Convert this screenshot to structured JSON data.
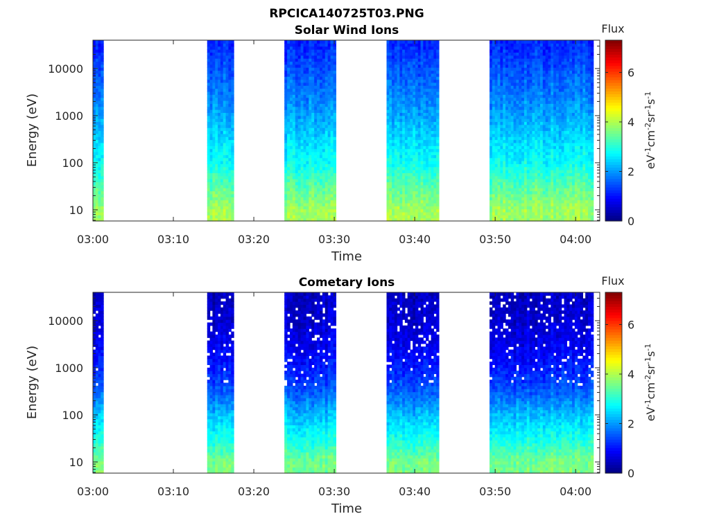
{
  "figure": {
    "title": "RPCICA140725T03.PNG",
    "colorbar_title": "Flux",
    "colorbar_label_parts": [
      "eV",
      "-1",
      "cm",
      "-2",
      "sr",
      "-1",
      "s",
      "-1"
    ]
  },
  "chart_data": [
    {
      "type": "heatmap",
      "title": "Solar Wind Ions",
      "xlabel": "Time",
      "ylabel": "Energy (eV)",
      "x_ticks": [
        "03:00",
        "03:10",
        "03:20",
        "03:30",
        "03:40",
        "03:50",
        "04:00"
      ],
      "x_tick_minutes": [
        0,
        10,
        20,
        30,
        40,
        50,
        60
      ],
      "xlim_minutes": [
        0,
        63
      ],
      "y_ticks": [
        "10",
        "100",
        "1000",
        "10000"
      ],
      "y_tick_values": [
        10,
        100,
        1000,
        10000
      ],
      "yscale": "log",
      "ylim": [
        5.8,
        40000
      ],
      "colorbar": {
        "label": "Flux",
        "ticks": [
          "0",
          "2",
          "4",
          "6"
        ],
        "tick_values": [
          0,
          2,
          4,
          6
        ],
        "clim": [
          0,
          7.3
        ],
        "colormap": "jet"
      },
      "data_intervals_minutes": [
        [
          0,
          1.3
        ],
        [
          14.2,
          17.5
        ],
        [
          23.8,
          30.2
        ],
        [
          36.5,
          43
        ],
        [
          49.3,
          62.2
        ]
      ],
      "flux_profile_by_energy": [
        {
          "energy_eV": 10,
          "flux": 3.9
        },
        {
          "energy_eV": 30,
          "flux": 3.4
        },
        {
          "energy_eV": 100,
          "flux": 2.8
        },
        {
          "energy_eV": 300,
          "flux": 2.5
        },
        {
          "energy_eV": 1000,
          "flux": 2.1
        },
        {
          "energy_eV": 3000,
          "flux": 1.8
        },
        {
          "energy_eV": 10000,
          "flux": 1.5
        },
        {
          "energy_eV": 30000,
          "flux": 1.2
        }
      ]
    },
    {
      "type": "heatmap",
      "title": "Cometary Ions",
      "xlabel": "Time",
      "ylabel": "Energy (eV)",
      "x_ticks": [
        "03:00",
        "03:10",
        "03:20",
        "03:30",
        "03:40",
        "03:50",
        "04:00"
      ],
      "x_tick_minutes": [
        0,
        10,
        20,
        30,
        40,
        50,
        60
      ],
      "xlim_minutes": [
        0,
        63
      ],
      "y_ticks": [
        "10",
        "100",
        "1000",
        "10000"
      ],
      "y_tick_values": [
        10,
        100,
        1000,
        10000
      ],
      "yscale": "log",
      "ylim": [
        5.8,
        40000
      ],
      "colorbar": {
        "label": "Flux",
        "ticks": [
          "0",
          "2",
          "4",
          "6"
        ],
        "tick_values": [
          0,
          2,
          4,
          6
        ],
        "clim": [
          0,
          7.3
        ],
        "colormap": "jet"
      },
      "data_intervals_minutes": [
        [
          0,
          1.3
        ],
        [
          14.2,
          17.5
        ],
        [
          23.8,
          30.2
        ],
        [
          36.5,
          43
        ],
        [
          49.3,
          62.2
        ]
      ],
      "flux_profile_by_energy": [
        {
          "energy_eV": 10,
          "flux": 3.6
        },
        {
          "energy_eV": 30,
          "flux": 2.9
        },
        {
          "energy_eV": 100,
          "flux": 2.3
        },
        {
          "energy_eV": 300,
          "flux": 1.6
        },
        {
          "energy_eV": 1000,
          "flux": 1.1
        },
        {
          "energy_eV": 3000,
          "flux": 0.8
        },
        {
          "energy_eV": 10000,
          "flux": 0.6
        },
        {
          "energy_eV": 30000,
          "flux": 0.5
        }
      ]
    }
  ]
}
